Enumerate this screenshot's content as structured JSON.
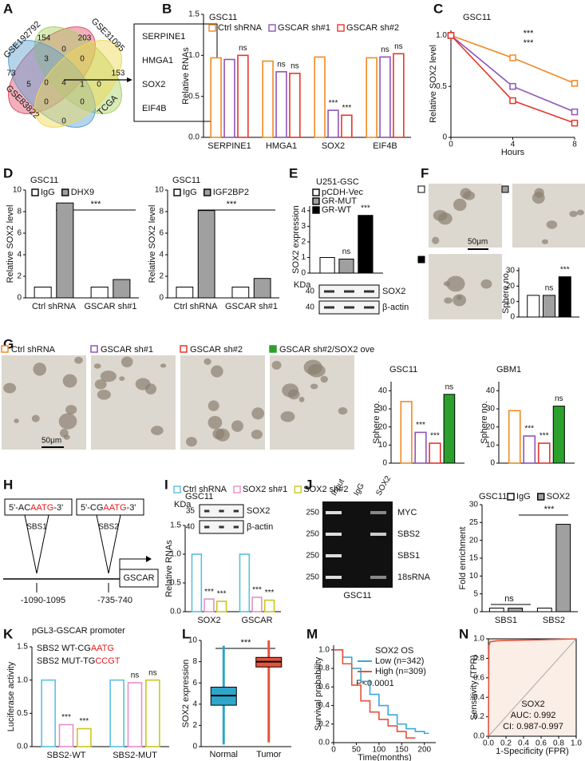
{
  "panel_letters": [
    "A",
    "B",
    "C",
    "D",
    "E",
    "F",
    "G",
    "H",
    "I",
    "J",
    "K",
    "L",
    "M",
    "N"
  ],
  "venn": {
    "sets": [
      "GSE192792",
      "GSE31095",
      "GSE83822",
      "TCGA"
    ],
    "colors": [
      "#e0506a",
      "#a8d060",
      "#5a9fd0",
      "#f0d850"
    ],
    "counts": [
      73,
      154,
      203,
      153,
      3,
      0,
      0,
      5,
      0,
      4,
      1,
      0,
      0,
      0,
      0
    ],
    "genes": [
      {
        "text": "SERPINE1",
        "color": "#111111"
      },
      {
        "text": "HMGA1",
        "color": "#111111"
      },
      {
        "text": "SOX2",
        "color": "#e31a1c"
      },
      {
        "text": "EIF4B",
        "color": "#111111"
      }
    ]
  },
  "blot_E": {
    "unit": "KDa",
    "rows": [
      {
        "marker": 40,
        "label": "SOX2"
      },
      {
        "marker": 40,
        "label": "β-actin"
      }
    ]
  },
  "images_F": {
    "scale": "50μm",
    "colors": [
      "#ffffff",
      "#a0a0a0",
      "#000000"
    ]
  },
  "images_G": {
    "labels": [
      "Ctrl shRNA",
      "GSCAR sh#1",
      "GSCAR sh#2",
      "GSCAR sh#2/SOX2 ove"
    ],
    "colors": [
      "#f08a24",
      "#8e55b8",
      "#e8352a",
      "#2ca02c"
    ],
    "scale": "50μm"
  },
  "diagram_H": {
    "sites": [
      {
        "prefix": "5'-AC",
        "motif": "AATG",
        "suffix": "-3'",
        "name": "SBS1",
        "position": "-1090-1095"
      },
      {
        "prefix": "5'-CG",
        "motif": "AATG",
        "suffix": "-3'",
        "name": "SBS2",
        "position": "-735-740"
      }
    ],
    "gene": "GSCAR",
    "motif_color": "#e31a1c"
  },
  "blot_I": {
    "title": "GSC11",
    "unit": "KDa",
    "rows": [
      {
        "marker": 35,
        "label": "SOX2"
      },
      {
        "marker": 40,
        "label": "β-actin"
      }
    ]
  },
  "gel_J": {
    "lanes": [
      "Input",
      "IgG",
      "SOX2"
    ],
    "rows": [
      {
        "marker": 250,
        "label": "MYC"
      },
      {
        "marker": 250,
        "label": "SBS2"
      },
      {
        "marker": 250,
        "label": "SBS1"
      },
      {
        "marker": 250,
        "label": "18sRNA"
      }
    ],
    "caption": "GSC11"
  },
  "chart_data": [
    {
      "panel": "B",
      "type": "bar",
      "title": "GSC11",
      "ylabel": "Relative RNAs",
      "bar_style": "outline",
      "legend": true,
      "categories": [
        "SERPINE1",
        "HMGA1",
        "SOX2",
        "EIF4B"
      ],
      "series": [
        {
          "name": "Ctrl shRNA",
          "color": "#f08a24",
          "values": [
            0.97,
            0.93,
            0.98,
            0.97
          ]
        },
        {
          "name": "GSCAR sh#1",
          "color": "#8e55b8",
          "values": [
            0.95,
            0.8,
            0.33,
            0.98
          ],
          "significance": [
            null,
            "ns",
            "***",
            "ns"
          ]
        },
        {
          "name": "GSCAR sh#2",
          "color": "#e8352a",
          "values": [
            1.0,
            0.78,
            0.27,
            1.02
          ],
          "significance": [
            "ns",
            "ns",
            "***",
            "ns"
          ]
        }
      ],
      "ylim": [
        0,
        1.5
      ],
      "yticks": [
        {
          "value": 0,
          "label": "0.0"
        },
        0.5,
        {
          "value": 1,
          "label": "1.0"
        },
        1.5
      ]
    },
    {
      "panel": "C",
      "type": "line",
      "title": "GSC11",
      "xlabel": "Hours",
      "ylabel": "Relative SOX2 level",
      "markers": true,
      "x": [
        0,
        4,
        8
      ],
      "xlim": [
        0,
        8
      ],
      "xticks": [
        0,
        4,
        8
      ],
      "ylim": [
        0,
        1.05
      ],
      "yticks": [
        0,
        0.5,
        {
          "value": 1,
          "label": "1.0"
        }
      ],
      "series": [
        {
          "color": "#f08a24",
          "values": [
            1,
            0.78,
            0.53
          ]
        },
        {
          "color": "#8e55b8",
          "values": [
            1,
            0.5,
            0.25
          ]
        },
        {
          "color": "#e8352a",
          "values": [
            1,
            0.36,
            0.14
          ]
        }
      ],
      "annotations": [
        "***",
        "***"
      ]
    },
    {
      "panel": "D",
      "type": "bar",
      "title": "GSC11",
      "ylabel": "Relative SOX2 level",
      "bar_style": "filled",
      "legend": true,
      "categories": [
        "Ctrl shRNA",
        "GSCAR sh#1"
      ],
      "series": [
        {
          "name": "IgG",
          "color": "#ffffff",
          "values": [
            1.0,
            1.0
          ]
        },
        {
          "name": "DHX9",
          "color": "#a0a0a0",
          "values": [
            8.8,
            1.7
          ]
        }
      ],
      "ylim": [
        0,
        10
      ],
      "yticks": [
        0,
        2,
        4,
        6,
        8,
        10
      ],
      "annotations": [
        "***"
      ]
    },
    {
      "panel": "D",
      "type": "bar",
      "title": "GSC11",
      "ylabel": "Relative SOX2 level",
      "bar_style": "filled",
      "legend": true,
      "categories": [
        "Ctrl shRNA",
        "GSCAR sh#1"
      ],
      "series": [
        {
          "name": "IgG",
          "color": "#ffffff",
          "values": [
            1.0,
            1.0
          ]
        },
        {
          "name": "IGF2BP2",
          "color": "#a0a0a0",
          "values": [
            8.1,
            1.8
          ]
        }
      ],
      "ylim": [
        0,
        10
      ],
      "yticks": [
        0,
        2,
        4,
        6,
        8,
        10
      ],
      "annotations": [
        "***"
      ]
    },
    {
      "panel": "E",
      "type": "bar",
      "title": "U251-GSC",
      "ylabel": "SOX2 expression",
      "bar_style": "filled",
      "legend": true,
      "categories": [
        null
      ],
      "series": [
        {
          "name": "pCDH-Vec",
          "color": "#ffffff",
          "values": [
            1.0
          ]
        },
        {
          "name": "GR-MUT",
          "color": "#a0a0a0",
          "values": [
            0.9
          ],
          "significance": [
            "ns"
          ]
        },
        {
          "name": "GR-WT",
          "color": "#000000",
          "values": [
            3.7
          ],
          "significance": [
            "***"
          ]
        }
      ],
      "ylim": [
        0,
        4.3
      ],
      "yticks": [
        0,
        1,
        2,
        3,
        4
      ]
    },
    {
      "panel": "F",
      "type": "bar",
      "ylabel": "Sphere no.",
      "bar_style": "filled",
      "categories": [
        null
      ],
      "series": [
        {
          "color": "#ffffff",
          "values": [
            14
          ]
        },
        {
          "color": "#a0a0a0",
          "values": [
            14
          ],
          "significance": [
            "ns"
          ]
        },
        {
          "color": "#000000",
          "values": [
            26
          ],
          "significance": [
            "***"
          ]
        }
      ],
      "ylim": [
        0,
        32
      ],
      "yticks": [
        0,
        10,
        20,
        30
      ]
    },
    {
      "panel": "G",
      "type": "bar",
      "title": "GSC11",
      "ylabel": "Sphere no.",
      "bar_style": "outline",
      "categories": [
        null
      ],
      "series": [
        {
          "color": "#f08a24",
          "values": [
            34
          ]
        },
        {
          "color": "#8e55b8",
          "values": [
            17
          ],
          "significance": [
            "***"
          ]
        },
        {
          "color": "#e8352a",
          "values": [
            11
          ],
          "significance": [
            "***"
          ]
        },
        {
          "color": "#2ca02c",
          "filled": true,
          "values": [
            38
          ],
          "significance": [
            "ns"
          ]
        }
      ],
      "ylim": [
        0,
        45
      ],
      "yticks": [
        0,
        10,
        20,
        30,
        40
      ]
    },
    {
      "panel": "G",
      "type": "bar",
      "title": "GBM1",
      "ylabel": "Sphere no.",
      "bar_style": "outline",
      "categories": [
        null
      ],
      "series": [
        {
          "color": "#f08a24",
          "values": [
            29
          ]
        },
        {
          "color": "#8e55b8",
          "values": [
            15
          ],
          "significance": [
            "***"
          ]
        },
        {
          "color": "#e8352a",
          "values": [
            11
          ],
          "significance": [
            "***"
          ]
        },
        {
          "color": "#2ca02c",
          "filled": true,
          "values": [
            31.5
          ],
          "significance": [
            "ns"
          ]
        }
      ],
      "ylim": [
        0,
        45
      ],
      "yticks": [
        0,
        10,
        20,
        30,
        40
      ]
    },
    {
      "panel": "I",
      "type": "bar",
      "ylabel": "Relative RNAs",
      "bar_style": "outline",
      "legend": true,
      "categories": [
        "SOX2",
        "GSCAR"
      ],
      "series": [
        {
          "name": "Ctrl shRNA",
          "color": "#5bc0de",
          "values": [
            1.0,
            1.0
          ]
        },
        {
          "name": "SOX2 sh#1",
          "color": "#e88ec8",
          "values": [
            0.22,
            0.25
          ],
          "significance": [
            "***",
            "***"
          ]
        },
        {
          "name": "SOX2 sh#2",
          "color": "#c8c820",
          "values": [
            0.18,
            0.2
          ],
          "significance": [
            "***",
            "***"
          ]
        }
      ],
      "ylim": [
        0,
        1.5
      ],
      "yticks": [
        {
          "value": 0,
          "label": "0.0"
        },
        0.5,
        {
          "value": 1,
          "label": "1.0"
        },
        1.5
      ]
    },
    {
      "panel": "J",
      "type": "bar",
      "title": "GSC11",
      "ylabel": "Fold enrichment",
      "bar_style": "filled",
      "legend": true,
      "categories": [
        "SBS1",
        "SBS2"
      ],
      "series": [
        {
          "name": "IgG",
          "color": "#ffffff",
          "values": [
            1.0,
            1.0
          ]
        },
        {
          "name": "SOX2",
          "color": "#a0a0a0",
          "values": [
            1.0,
            24.5
          ]
        }
      ],
      "ylim": [
        0,
        30
      ],
      "yticks": [
        0,
        5,
        10,
        15,
        20,
        25,
        30
      ],
      "annotations": [
        "ns",
        "***"
      ]
    },
    {
      "panel": "K",
      "type": "bar",
      "title": "pGL3-GSCAR promoter",
      "ylabel": "Luciferase activity",
      "bar_style": "outline",
      "categories": [
        "SBS2-WT",
        "SBS2-MUT"
      ],
      "sequences": [
        {
          "label": "SBS2  WT-",
          "prefix": "CG",
          "motif": "AATG"
        },
        {
          "label": "SBS2 MUT-",
          "prefix": "TG",
          "motif": "CCGT"
        }
      ],
      "motif_color": "#e31a1c",
      "series": [
        {
          "color": "#5bc0de",
          "values": [
            1.0,
            1.0
          ]
        },
        {
          "color": "#e88ec8",
          "values": [
            0.33,
            0.96
          ],
          "significance": [
            "***",
            "ns"
          ]
        },
        {
          "color": "#c8c820",
          "values": [
            0.27,
            1.0
          ],
          "significance": [
            "***",
            "ns"
          ]
        }
      ],
      "ylim": [
        0,
        1.5
      ],
      "yticks": [
        {
          "value": 0,
          "label": "0.0"
        },
        0.5,
        {
          "value": 1,
          "label": "1.0"
        },
        1.5
      ]
    },
    {
      "panel": "L",
      "type": "box",
      "ylabel": "SOX2 expression",
      "categories": [
        "Normal",
        "Tumor"
      ],
      "colors": [
        "#2fa6c9",
        "#e5533c"
      ],
      "boxes": [
        {
          "min": 0.2,
          "q1": 3.9,
          "median": 4.8,
          "q3": 5.6,
          "max": 9.5
        },
        {
          "min": 0.4,
          "q1": 7.5,
          "median": 8.0,
          "q3": 8.4,
          "max": 10
        }
      ],
      "ylim": [
        0,
        10
      ],
      "yticks": [
        0,
        2,
        4,
        6,
        8,
        10
      ],
      "annotations": [
        "***"
      ]
    },
    {
      "panel": "M",
      "type": "line",
      "step": true,
      "ylabel": "Survival probability",
      "xlabel": "Time(months)",
      "legend_title": "SOX2  OS",
      "x": [
        0,
        20,
        40,
        60,
        80,
        100,
        120,
        140,
        160,
        180,
        200,
        210
      ],
      "xlim": [
        0,
        225
      ],
      "xticks": [
        0,
        50,
        100,
        150,
        200
      ],
      "series": [
        {
          "name": "Low (n=342)",
          "color": "#3aa8d8",
          "values": [
            1,
            0.92,
            0.8,
            0.66,
            0.52,
            0.4,
            0.3,
            0.2,
            0.15,
            0.12,
            0.1,
            0.1
          ]
        },
        {
          "name": "High (n=309)",
          "color": "#e5533c",
          "values": [
            1,
            0.85,
            0.62,
            0.45,
            0.33,
            0.25,
            0.18,
            0.12,
            0.05,
            0.05,
            null,
            null
          ]
        }
      ],
      "ylim": [
        0,
        1.05
      ],
      "yticks": [
        {
          "value": 0,
          "label": "0.0"
        },
        0.2,
        0.4,
        0.6,
        0.8,
        {
          "value": 1,
          "label": "1.0"
        }
      ],
      "annotations": [
        "P<0.0001"
      ]
    },
    {
      "panel": "N",
      "type": "line",
      "ylabel": "Sensitivity (TPR)",
      "xlabel": "1-Specificity (FPR)",
      "diagonal": true,
      "background": "#fbeee6",
      "x": [
        0,
        0.005,
        0.02,
        0.1,
        0.3,
        0.6,
        1
      ],
      "xlim": [
        0,
        1
      ],
      "xticks": [
        {
          "value": 0,
          "label": "0.0"
        },
        0.2,
        0.4,
        0.6,
        0.8,
        {
          "value": 1,
          "label": "1.0"
        }
      ],
      "series": [
        {
          "color": "#e5533c",
          "values": [
            0,
            0.93,
            0.97,
            0.98,
            0.985,
            0.99,
            1
          ]
        }
      ],
      "ylim": [
        0,
        1
      ],
      "yticks": [
        {
          "value": 0,
          "label": "0.0"
        },
        0.2,
        0.4,
        0.6,
        0.8,
        {
          "value": 1,
          "label": "1.0"
        }
      ],
      "annotations": [
        "SOX2",
        "AUC: 0.992",
        "CI: 0.987-0.997"
      ]
    }
  ]
}
